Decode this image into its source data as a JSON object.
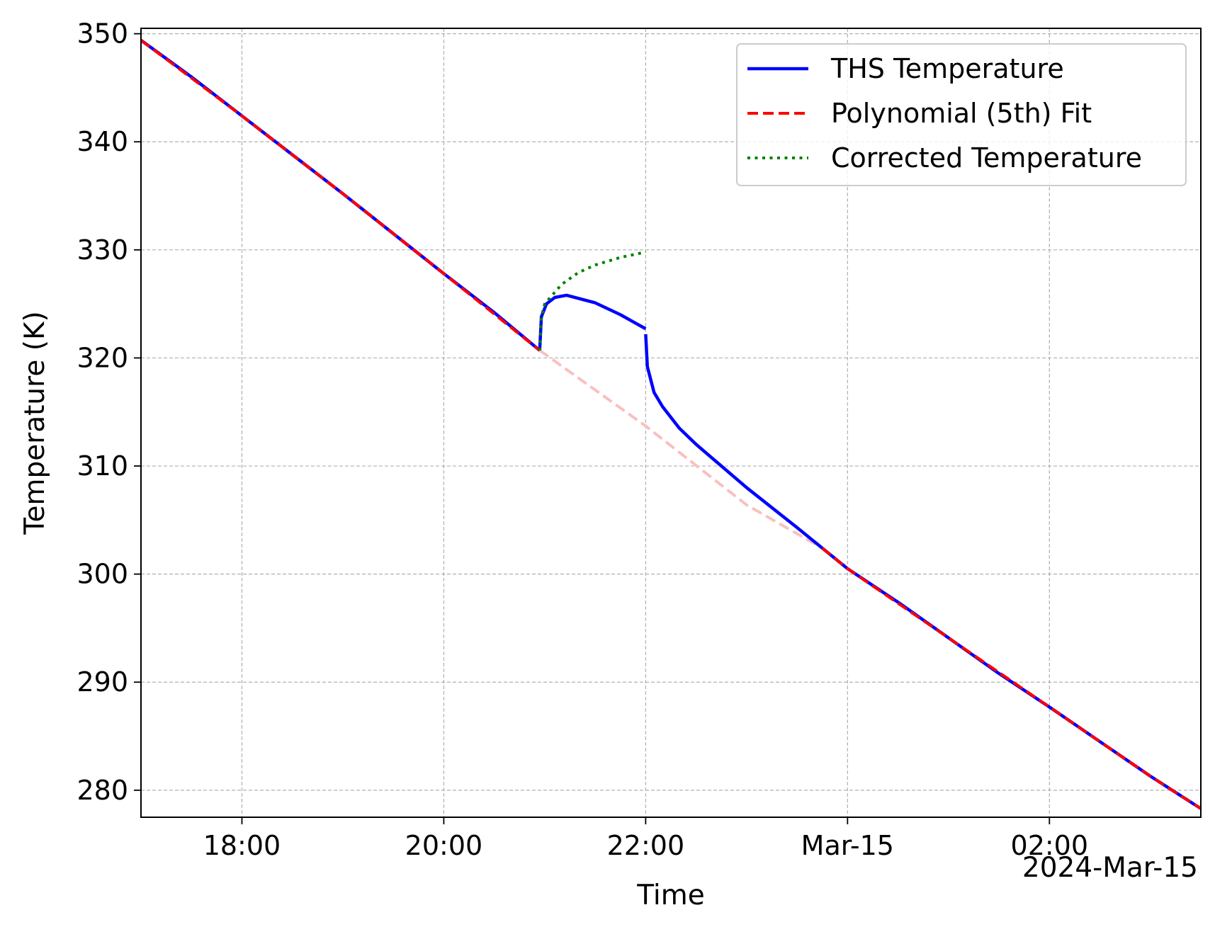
{
  "chart_data": {
    "type": "line",
    "title": "",
    "xlabel": "Time",
    "ylabel": "Temperature (K)",
    "x_offset_label": "2024-Mar-15",
    "x_type": "datetime",
    "xlim": [
      "2024-03-14T17:00",
      "2024-03-15T03:30"
    ],
    "ylim": [
      277.5,
      350.5
    ],
    "x_ticks": [
      {
        "value": "2024-03-14T18:00",
        "label": "18:00"
      },
      {
        "value": "2024-03-14T20:00",
        "label": "20:00"
      },
      {
        "value": "2024-03-14T22:00",
        "label": "22:00"
      },
      {
        "value": "2024-03-15T00:00",
        "label": "Mar-15"
      },
      {
        "value": "2024-03-15T02:00",
        "label": "02:00"
      }
    ],
    "y_ticks": [
      280,
      290,
      300,
      310,
      320,
      330,
      340,
      350
    ],
    "grid": true,
    "legend_position": "top-right",
    "series": [
      {
        "name": "THS Temperature",
        "color": "#0000ff",
        "style": "solid",
        "segments": [
          [
            [
              "2024-03-14T17:00",
              349.4
            ],
            [
              "2024-03-14T17:30",
              346.0
            ],
            [
              "2024-03-14T18:00",
              342.4
            ],
            [
              "2024-03-14T18:30",
              338.8
            ],
            [
              "2024-03-14T19:00",
              335.2
            ],
            [
              "2024-03-14T19:30",
              331.5
            ],
            [
              "2024-03-14T20:00",
              327.8
            ],
            [
              "2024-03-14T20:30",
              324.2
            ],
            [
              "2024-03-14T20:57",
              320.7
            ]
          ],
          [
            [
              "2024-03-14T20:57",
              320.7
            ],
            [
              "2024-03-14T20:58",
              323.8
            ],
            [
              "2024-03-14T21:01",
              325.0
            ],
            [
              "2024-03-14T21:06",
              325.6
            ],
            [
              "2024-03-14T21:13",
              325.8
            ],
            [
              "2024-03-14T21:30",
              325.1
            ],
            [
              "2024-03-14T21:45",
              324.0
            ],
            [
              "2024-03-14T22:00",
              322.7
            ]
          ],
          [
            [
              "2024-03-14T22:00",
              322.2
            ],
            [
              "2024-03-14T22:01",
              319.2
            ],
            [
              "2024-03-14T22:05",
              316.8
            ],
            [
              "2024-03-14T22:10",
              315.5
            ],
            [
              "2024-03-14T22:20",
              313.5
            ],
            [
              "2024-03-14T22:30",
              312.0
            ],
            [
              "2024-03-14T23:00",
              308.0
            ],
            [
              "2024-03-14T23:30",
              304.3
            ],
            [
              "2024-03-15T00:00",
              300.5
            ],
            [
              "2024-03-15T00:30",
              297.4
            ],
            [
              "2024-03-15T01:00",
              294.1
            ],
            [
              "2024-03-15T01:30",
              290.8
            ],
            [
              "2024-03-15T02:00",
              287.7
            ],
            [
              "2024-03-15T02:30",
              284.5
            ],
            [
              "2024-03-15T03:00",
              281.3
            ],
            [
              "2024-03-15T03:30",
              278.3
            ]
          ]
        ]
      },
      {
        "name": "Polynomial (5th) Fit",
        "color": "#ff0000",
        "style": "dashed",
        "segments": [
          [
            [
              "2024-03-14T17:00",
              349.4
            ],
            [
              "2024-03-14T18:00",
              342.4
            ],
            [
              "2024-03-14T19:00",
              335.2
            ],
            [
              "2024-03-14T20:00",
              327.8
            ],
            [
              "2024-03-14T20:57",
              320.7
            ]
          ],
          [
            [
              "2024-03-14T23:45",
              302.4
            ],
            [
              "2024-03-15T00:00",
              300.5
            ],
            [
              "2024-03-15T01:00",
              294.1
            ],
            [
              "2024-03-15T02:00",
              287.7
            ],
            [
              "2024-03-15T03:00",
              281.3
            ],
            [
              "2024-03-15T03:30",
              278.3
            ]
          ]
        ]
      },
      {
        "name": "Polynomial (5th) Fit (gap interpolation)",
        "color": "#f9c0c0",
        "style": "dashed",
        "in_legend": false,
        "segments": [
          [
            [
              "2024-03-14T20:57",
              320.7
            ],
            [
              "2024-03-14T22:00",
              313.7
            ],
            [
              "2024-03-14T23:00",
              306.4
            ],
            [
              "2024-03-14T23:45",
              302.4
            ]
          ]
        ]
      },
      {
        "name": "Corrected Temperature",
        "color": "#008000",
        "style": "dotted",
        "segments": [
          [
            [
              "2024-03-14T20:57",
              320.7
            ],
            [
              "2024-03-14T20:58",
              323.8
            ],
            [
              "2024-03-14T21:00",
              325.0
            ],
            [
              "2024-03-14T21:10",
              326.8
            ],
            [
              "2024-03-14T21:20",
              327.9
            ],
            [
              "2024-03-14T21:30",
              328.6
            ],
            [
              "2024-03-14T21:45",
              329.3
            ],
            [
              "2024-03-14T22:00",
              329.8
            ]
          ]
        ]
      }
    ]
  }
}
